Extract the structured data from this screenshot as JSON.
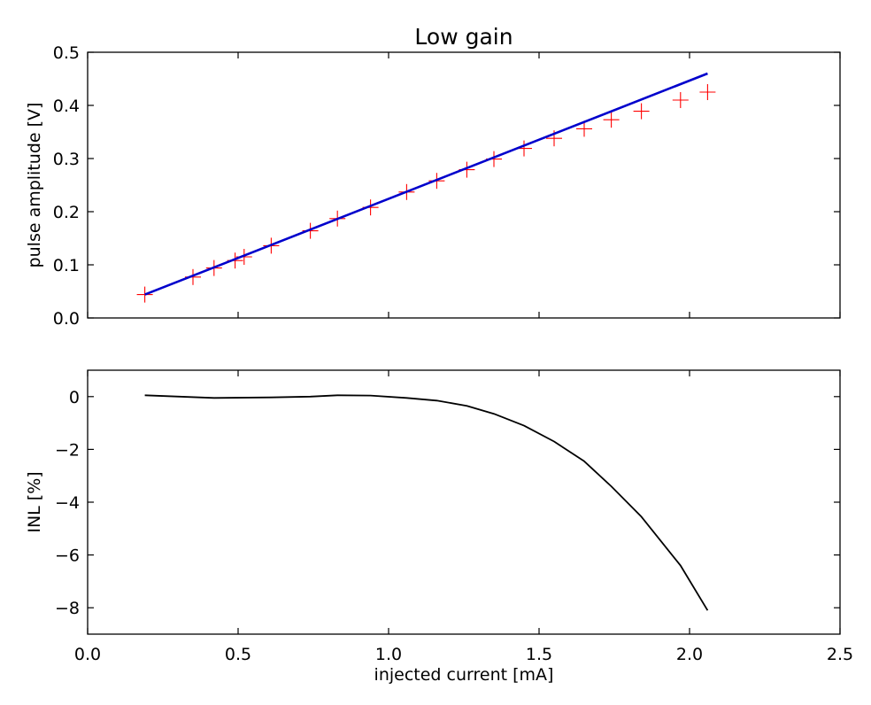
{
  "title": "Low gain",
  "chart_data": [
    {
      "type": "scatter",
      "xlabel": "",
      "ylabel": "pulse amplitude [V]",
      "xlim": [
        0.0,
        2.5
      ],
      "ylim": [
        0.0,
        0.5
      ],
      "xticks": [
        0.0,
        0.5,
        1.0,
        1.5,
        2.0,
        2.5
      ],
      "xtick_labels_shown": false,
      "yticks": [
        "0.0",
        "0.1",
        "0.2",
        "0.3",
        "0.4",
        "0.5"
      ],
      "grid": false,
      "series": [
        {
          "kind": "markers",
          "marker": "plus",
          "color": "#ff0000",
          "x": [
            0.19,
            0.35,
            0.42,
            0.49,
            0.52,
            0.61,
            0.74,
            0.83,
            0.94,
            1.06,
            1.16,
            1.26,
            1.35,
            1.45,
            1.55,
            1.65,
            1.74,
            1.84,
            1.97,
            2.06
          ],
          "y": [
            0.044,
            0.077,
            0.094,
            0.108,
            0.115,
            0.136,
            0.164,
            0.187,
            0.208,
            0.237,
            0.258,
            0.279,
            0.299,
            0.319,
            0.338,
            0.356,
            0.373,
            0.389,
            0.41,
            0.425
          ]
        },
        {
          "kind": "line",
          "color": "#0000cc",
          "x": [
            0.19,
            2.06
          ],
          "y": [
            0.044,
            0.46
          ]
        }
      ]
    },
    {
      "type": "line",
      "xlabel": "injected current [mA]",
      "ylabel": "INL [%]",
      "xlim": [
        0.0,
        2.5
      ],
      "ylim": [
        -9.0,
        1.0
      ],
      "xticks": [
        "0.0",
        "0.5",
        "1.0",
        "1.5",
        "2.0",
        "2.5"
      ],
      "yticks": [
        "0",
        "−2",
        "−4",
        "−6",
        "−8"
      ],
      "ytick_values": [
        0,
        -2,
        -4,
        -6,
        -8
      ],
      "grid": false,
      "series": [
        {
          "color": "#000000",
          "x": [
            0.19,
            0.42,
            0.61,
            0.74,
            0.83,
            0.94,
            1.06,
            1.16,
            1.26,
            1.35,
            1.45,
            1.55,
            1.65,
            1.74,
            1.84,
            1.97,
            2.06
          ],
          "y": [
            0.05,
            -0.05,
            -0.03,
            0.0,
            0.05,
            0.04,
            -0.05,
            -0.15,
            -0.35,
            -0.65,
            -1.1,
            -1.7,
            -2.45,
            -3.4,
            -4.55,
            -6.4,
            -8.1
          ]
        }
      ]
    }
  ]
}
